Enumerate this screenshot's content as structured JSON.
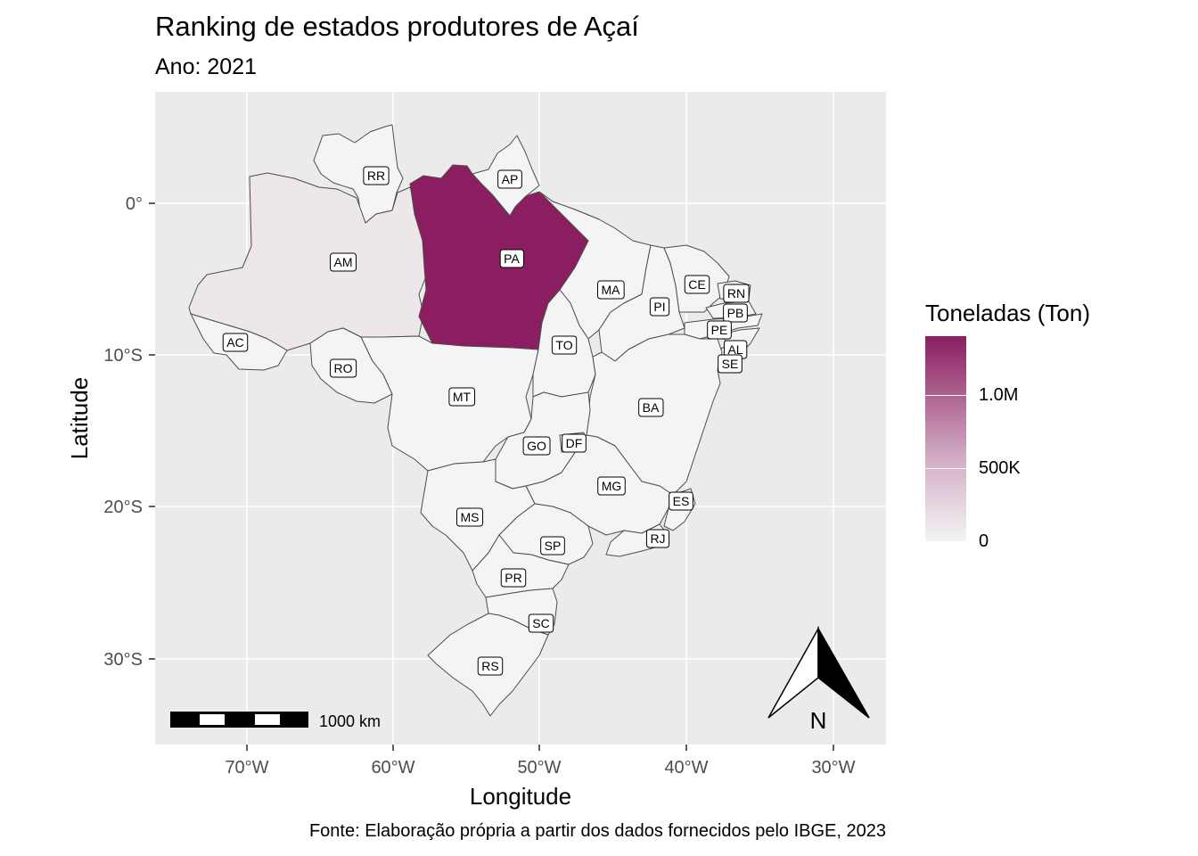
{
  "title": "Ranking de estados produtores de Açaí",
  "subtitle": "Ano: 2021",
  "caption": "Fonte: Elaboração própria a partir dos dados fornecidos pelo IBGE, 2023",
  "axes": {
    "xlabel": "Longitude",
    "ylabel": "Latitude",
    "x_ticks": [
      "70°W",
      "60°W",
      "50°W",
      "40°W",
      "30°W"
    ],
    "y_ticks": [
      "0°",
      "10°S",
      "20°S",
      "30°S"
    ]
  },
  "legend": {
    "title": "Toneladas (Ton)",
    "ticks": [
      "1.0M",
      "500K",
      "0"
    ],
    "colors": {
      "high": "#8b1e60",
      "mid": "#d3aec6",
      "low": "#f4f4f4"
    }
  },
  "scale_bar": {
    "label": "1000 km"
  },
  "north_arrow": {
    "label": "N"
  },
  "chart_data": {
    "type": "choropleth",
    "variable": "Toneladas (Ton)",
    "year": 2021,
    "states": [
      {
        "abbr": "PA",
        "value": 1400000
      },
      {
        "abbr": "AM",
        "value": 75000
      },
      {
        "abbr": "RR",
        "value": 0
      },
      {
        "abbr": "AP",
        "value": 0
      },
      {
        "abbr": "AC",
        "value": 0
      },
      {
        "abbr": "RO",
        "value": 0
      },
      {
        "abbr": "MT",
        "value": 0
      },
      {
        "abbr": "MA",
        "value": 0
      },
      {
        "abbr": "TO",
        "value": 0
      },
      {
        "abbr": "PI",
        "value": 0
      },
      {
        "abbr": "CE",
        "value": 0
      },
      {
        "abbr": "RN",
        "value": 0
      },
      {
        "abbr": "PB",
        "value": 0
      },
      {
        "abbr": "PE",
        "value": 0
      },
      {
        "abbr": "AL",
        "value": 0
      },
      {
        "abbr": "SE",
        "value": 0
      },
      {
        "abbr": "BA",
        "value": 0
      },
      {
        "abbr": "GO",
        "value": 0
      },
      {
        "abbr": "DF",
        "value": 0
      },
      {
        "abbr": "MG",
        "value": 0
      },
      {
        "abbr": "ES",
        "value": 0
      },
      {
        "abbr": "MS",
        "value": 0
      },
      {
        "abbr": "SP",
        "value": 0
      },
      {
        "abbr": "RJ",
        "value": 0
      },
      {
        "abbr": "PR",
        "value": 0
      },
      {
        "abbr": "SC",
        "value": 0
      },
      {
        "abbr": "RS",
        "value": 0
      }
    ],
    "xlim": [
      -76,
      -27
    ],
    "ylim": [
      -35.5,
      7
    ]
  }
}
